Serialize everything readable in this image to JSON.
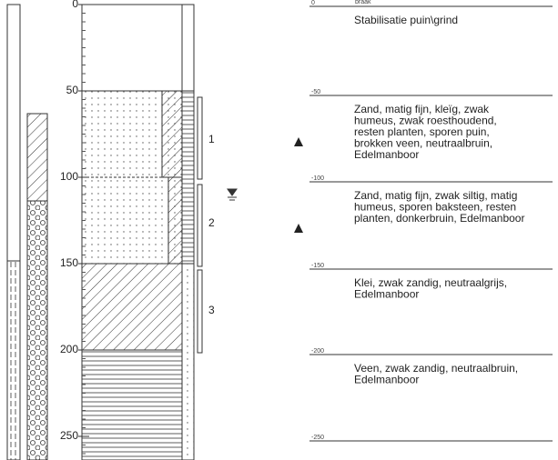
{
  "top_label": "braak",
  "depth_scale": {
    "ticks": [
      0,
      50,
      100,
      150,
      200,
      250
    ]
  },
  "samples": [
    "1",
    "2",
    "3"
  ],
  "depth_labels": [
    "0",
    "-50",
    "-100",
    "-150",
    "-200",
    "-250"
  ],
  "descriptions": [
    [
      "Stabilisatie puin\\grind"
    ],
    [
      "Zand, matig fijn, kleïg, zwak",
      "humeus, zwak roesthoudend,",
      "resten planten, sporen puin,",
      "brokken veen, neutraalbruin,",
      "Edelmanboor"
    ],
    [
      "Zand, matig fijn, zwak siltig, matig",
      "humeus, sporen baksteen, resten",
      "planten, donkerbruin, Edelmanboor"
    ],
    [
      "Klei, zwak zandig, neutraalgrijs,",
      "Edelmanboor"
    ],
    [
      "Veen, zwak zandig, neutraalbruin,",
      "Edelmanboor"
    ]
  ]
}
